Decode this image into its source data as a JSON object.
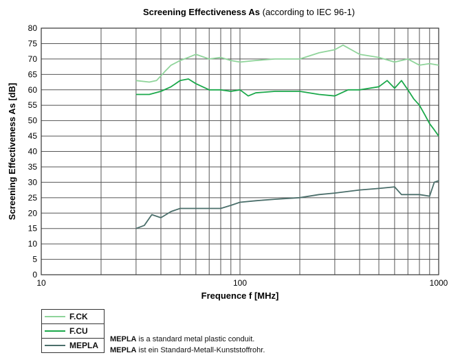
{
  "chart_data": {
    "type": "line",
    "title": "Screening Effectiveness As",
    "title_suffix": "(according to IEC 96-1)",
    "xlabel": "Frequence f [MHz]",
    "ylabel": "Screening Effectiveness As [dB]",
    "xscale": "log",
    "xlim": [
      10,
      1000
    ],
    "ylim": [
      0,
      80
    ],
    "x_ticks": [
      "10",
      "100",
      "1000"
    ],
    "y_ticks": [
      "0",
      "5",
      "10",
      "15",
      "20",
      "25",
      "30",
      "35",
      "40",
      "45",
      "50",
      "55",
      "60",
      "65",
      "70",
      "75",
      "80"
    ],
    "grid": true,
    "legend_position": "bottom-left",
    "series": [
      {
        "name": "F.CK",
        "color": "#8fd49a",
        "x": [
          30,
          35,
          38,
          42,
          45,
          50,
          55,
          60,
          70,
          80,
          90,
          100,
          120,
          150,
          200,
          250,
          300,
          330,
          400,
          500,
          600,
          700,
          800,
          900,
          1000
        ],
        "y": [
          63,
          62.5,
          63,
          66,
          68,
          69.5,
          70.5,
          71.5,
          70,
          70.5,
          69.5,
          69,
          69.5,
          70,
          70,
          72,
          73,
          74.5,
          71.5,
          70.5,
          69,
          70,
          68,
          68.5,
          68
        ]
      },
      {
        "name": "F.CU",
        "color": "#1aa84a",
        "x": [
          30,
          35,
          40,
          45,
          50,
          55,
          60,
          70,
          80,
          90,
          100,
          110,
          120,
          150,
          200,
          250,
          300,
          350,
          400,
          500,
          550,
          600,
          650,
          700,
          750,
          800,
          850,
          900,
          950,
          1000
        ],
        "y": [
          58.5,
          58.5,
          59.5,
          61,
          63,
          63.5,
          62,
          60,
          60,
          59.5,
          60,
          58,
          59,
          59.5,
          59.5,
          58.5,
          58,
          60,
          60,
          61,
          63,
          60.5,
          63,
          60,
          57,
          55,
          52,
          49,
          47,
          45
        ]
      },
      {
        "name": "MEPLA",
        "color": "#4a6e6a",
        "x": [
          30,
          33,
          36,
          40,
          45,
          50,
          60,
          70,
          80,
          90,
          100,
          120,
          150,
          200,
          250,
          300,
          400,
          500,
          600,
          650,
          700,
          800,
          900,
          950,
          1000
        ],
        "y": [
          15,
          16,
          19.5,
          18.5,
          20.5,
          21.5,
          21.5,
          21.5,
          21.5,
          22.5,
          23.5,
          24,
          24.5,
          25,
          26,
          26.5,
          27.5,
          28,
          28.5,
          26,
          26,
          26,
          25.5,
          30,
          30.5
        ]
      }
    ]
  },
  "notes": [
    {
      "bold": "MEPLA",
      "text": " is a standard metal plastic conduit."
    },
    {
      "bold": "MEPLA",
      "text": " ist ein Standard-Metall-Kunststoffrohr."
    }
  ]
}
